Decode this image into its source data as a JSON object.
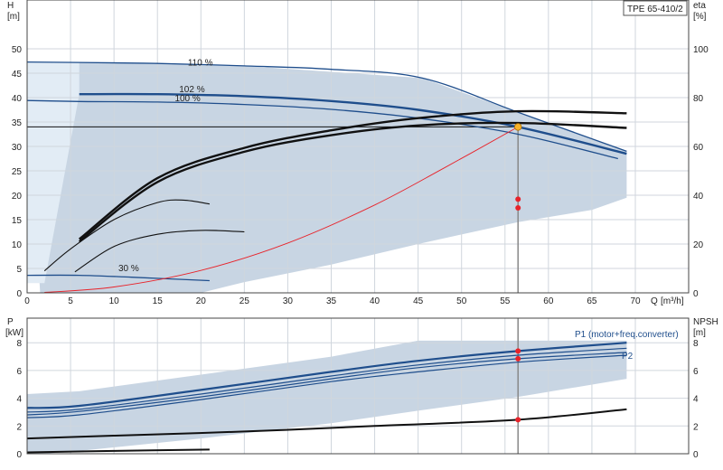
{
  "model": "TPE 65-410/2",
  "chart_data": [
    {
      "type": "line",
      "panel": "head-efficiency",
      "x_label": "Q",
      "x_unit": "[m³/h]",
      "xlim": [
        0,
        70
      ],
      "x_ticks": [
        "0",
        "5",
        "10",
        "15",
        "20",
        "25",
        "30",
        "35",
        "40",
        "45",
        "50",
        "55",
        "60",
        "65",
        "70"
      ],
      "y_label": "H",
      "y_unit": "[m]",
      "ylim": [
        0,
        50
      ],
      "y_ticks": [
        "0",
        "5",
        "10",
        "15",
        "20",
        "25",
        "30",
        "35",
        "40",
        "45",
        "50"
      ],
      "y2_label": "eta",
      "y2_unit": "[%]",
      "y2lim": [
        0,
        100
      ],
      "y2_ticks": [
        "0",
        "20",
        "40",
        "60",
        "80",
        "100"
      ],
      "grid": true,
      "duty_head": 34,
      "duty_flow": 56.5,
      "series": [
        {
          "label": "110 %",
          "label_at": [
            18.5,
            46.6
          ],
          "x": [
            0,
            6,
            15,
            25,
            35,
            45.5,
            56.5,
            69
          ],
          "y": [
            47.3,
            47.2,
            47,
            46.5,
            45.8,
            44,
            37,
            29
          ]
        },
        {
          "label": "102 %",
          "label_at": [
            17.5,
            41.1
          ],
          "x": [
            6,
            15,
            25,
            35,
            45,
            56.5,
            69
          ],
          "y": [
            40.7,
            40.7,
            40.3,
            39.3,
            37.5,
            34,
            28.5
          ]
        },
        {
          "label": "100 %",
          "label_at": [
            17,
            39.3
          ],
          "x": [
            0,
            6,
            15,
            25,
            35,
            45,
            56.5,
            68
          ],
          "y": [
            39.4,
            39.2,
            39.1,
            38.6,
            37.6,
            35.8,
            32.5,
            27.5
          ]
        },
        {
          "label": "30 %",
          "label_at": [
            10.5,
            4.4
          ],
          "x": [
            0,
            6,
            12,
            21
          ],
          "y": [
            3.6,
            3.6,
            3.2,
            2.5
          ]
        },
        {
          "label": "",
          "role": "system-curve",
          "x": [
            2,
            10,
            20,
            30,
            40,
            48,
            56.5
          ],
          "y": [
            0.1,
            1.2,
            4.6,
            10.2,
            18,
            25.6,
            34
          ]
        },
        {
          "label": "",
          "role": "efficiency",
          "x": [
            6,
            15,
            25,
            35,
            45,
            56.5,
            69
          ],
          "y": [
            11,
            23.5,
            29.7,
            33.3,
            35.8,
            37.2,
            36.8
          ]
        },
        {
          "label": "",
          "role": "efficiency",
          "x": [
            6,
            15,
            25,
            35,
            45,
            56.5,
            69
          ],
          "y": [
            10.5,
            22.7,
            28.9,
            32.3,
            34.3,
            34.8,
            33.8
          ]
        },
        {
          "label": "",
          "role": "efficiency",
          "x": [
            5.5,
            10,
            15,
            20,
            25
          ],
          "y": [
            4.3,
            9.5,
            12,
            12.8,
            12.5
          ]
        },
        {
          "label": "",
          "role": "efficiency",
          "x": [
            2,
            5,
            10,
            15,
            18,
            21
          ],
          "y": [
            4.5,
            9,
            15,
            18.5,
            19,
            18.2
          ]
        }
      ],
      "markers": [
        {
          "x": 56.5,
          "y": 34,
          "color": "#f7b32b"
        },
        {
          "x": 56.5,
          "y": 19.2,
          "color": "#e8232a"
        },
        {
          "x": 56.5,
          "y": 17.4,
          "color": "#e8232a"
        }
      ]
    },
    {
      "type": "line",
      "panel": "power-npsh",
      "xlim": [
        0,
        70
      ],
      "y_label": "P",
      "y_unit": "[kW]",
      "ylim": [
        0,
        9
      ],
      "y_ticks": [
        "0",
        "2",
        "4",
        "6",
        "8"
      ],
      "y2_label": "NPSH",
      "y2_unit": "[m]",
      "y2lim": [
        0,
        9
      ],
      "y2_ticks": [
        "0",
        "2",
        "4",
        "6",
        "8"
      ],
      "grid": true,
      "series": [
        {
          "label": "P1 (motor+freq.converter)",
          "x": [
            0,
            6,
            20,
            35,
            45,
            56.5,
            69
          ],
          "y": [
            3.3,
            3.45,
            4.6,
            5.9,
            6.7,
            7.4,
            8
          ]
        },
        {
          "label": "",
          "x": [
            0,
            6,
            20,
            35,
            45,
            56.5,
            69
          ],
          "y": [
            3,
            3.2,
            4.3,
            5.6,
            6.4,
            7.1,
            7.6
          ]
        },
        {
          "label": "",
          "x": [
            0,
            6,
            20,
            35,
            45,
            56.5,
            69
          ],
          "y": [
            2.8,
            3.05,
            4.1,
            5.4,
            6.2,
            6.85,
            7.3
          ]
        },
        {
          "label": "P2",
          "x": [
            0,
            6,
            20,
            35,
            45,
            56.5,
            69
          ],
          "y": [
            2.6,
            2.8,
            3.9,
            5.2,
            5.9,
            6.6,
            7.1
          ]
        },
        {
          "label": "",
          "role": "npsh",
          "x": [
            0,
            10,
            25,
            40,
            56.5,
            69
          ],
          "y": [
            1.1,
            1.3,
            1.6,
            2,
            2.45,
            3.2
          ]
        },
        {
          "label": "",
          "role": "npsh",
          "x": [
            0,
            10,
            21
          ],
          "y": [
            0.1,
            0.2,
            0.3
          ]
        }
      ],
      "markers": [
        {
          "x": 56.5,
          "y": 7.4,
          "color": "#e8232a"
        },
        {
          "x": 56.5,
          "y": 6.85,
          "color": "#e8232a"
        },
        {
          "x": 56.5,
          "y": 2.45,
          "color": "#e8232a"
        }
      ]
    }
  ]
}
